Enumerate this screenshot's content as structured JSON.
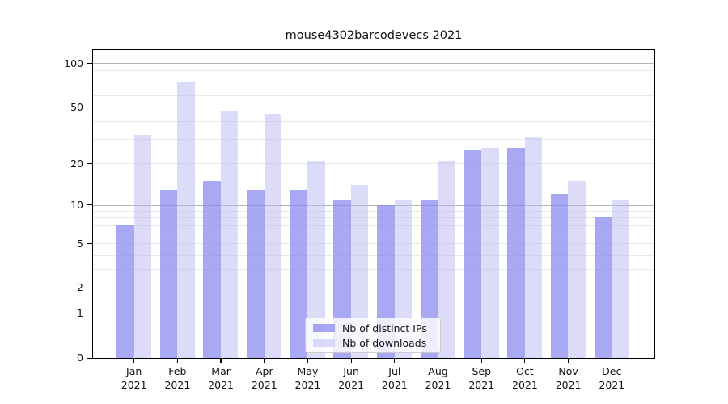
{
  "title": "mouse4302barcodevecs 2021",
  "chart_data": {
    "type": "bar",
    "title": "mouse4302barcodevecs 2021",
    "x_tick_month": [
      "Jan",
      "Feb",
      "Mar",
      "Apr",
      "May",
      "Jun",
      "Jul",
      "Aug",
      "Sep",
      "Oct",
      "Nov",
      "Dec"
    ],
    "x_tick_year": [
      "2021",
      "2021",
      "2021",
      "2021",
      "2021",
      "2021",
      "2021",
      "2021",
      "2021",
      "2021",
      "2021",
      "2021"
    ],
    "series": [
      {
        "name": "Nb of distinct IPs",
        "key": "distinct-ips",
        "color": "rgba(134,134,240,0.72)",
        "values": [
          7,
          13,
          15,
          13,
          13,
          11,
          10,
          11,
          25,
          26,
          12,
          8
        ]
      },
      {
        "name": "Nb of downloads",
        "key": "downloads",
        "color": "rgba(186,186,244,0.5)",
        "values": [
          32,
          75,
          47,
          45,
          21,
          14,
          11,
          21,
          26,
          31,
          15,
          11
        ]
      }
    ],
    "yscale": "log1p",
    "ytick_labels": [
      0,
      1,
      2,
      5,
      10,
      20,
      50,
      100
    ],
    "gridlines_decade": [
      1,
      10,
      100
    ],
    "gridlines_minor": [
      2,
      3,
      4,
      5,
      6,
      7,
      8,
      9,
      20,
      30,
      40,
      50,
      60,
      70,
      80,
      90
    ],
    "ylim": [
      0,
      125
    ],
    "legend_position": "lower center",
    "colors": {
      "axis": "#000000",
      "grid_decade": "#b3b3b3",
      "grid_minor": "#e9e9e9",
      "text": "#111111"
    }
  }
}
